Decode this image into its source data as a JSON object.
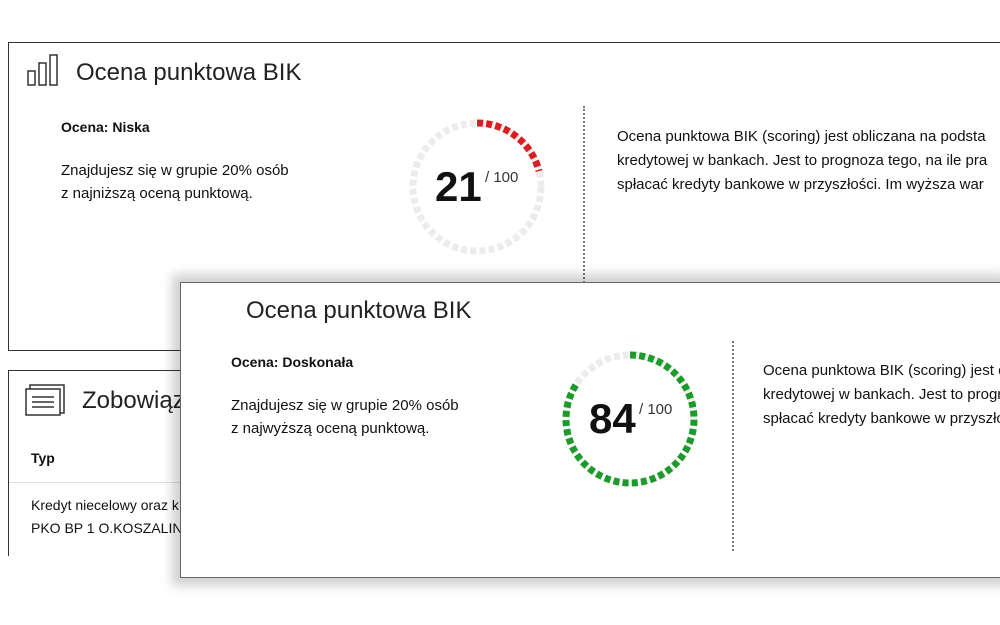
{
  "cards": [
    {
      "title": "Ocena punktowa BIK",
      "rating": "Ocena: Niska",
      "description": [
        "Znajdujesz się w grupie 20% osób",
        "z najniższą oceną punktową."
      ],
      "score": 21,
      "max": {
        "value": 100,
        "label": "/ 100"
      },
      "color": "#d71f1f",
      "explanation": [
        "Ocena punktowa BIK (scoring) jest obliczana na podsta",
        "kredytowej w bankach. Jest to prognoza tego, na ile pra",
        "spłacać kredyty bankowe w przyszłości. Im wyższa war"
      ]
    },
    {
      "title": "Ocena punktowa BIK",
      "rating": "Ocena: Doskonała",
      "description": [
        "Znajdujesz się w grupie 20% osób",
        "z najwyższą oceną punktową."
      ],
      "score": 84,
      "max": {
        "value": 100,
        "label": "/ 100"
      },
      "color": "#1c9a2a",
      "explanation": [
        "Ocena punktowa BIK (scoring) jest o",
        "kredytowej w bankach. Jest to progr",
        "spłacać kredyty bankowe w przyszło"
      ]
    }
  ],
  "obligations": {
    "title": "Zobowiąz",
    "column": "Typ",
    "rows": [
      [
        "Kredyt niecelowy oraz k",
        "PKO BP 1 O.KOSZALIN"
      ]
    ]
  }
}
